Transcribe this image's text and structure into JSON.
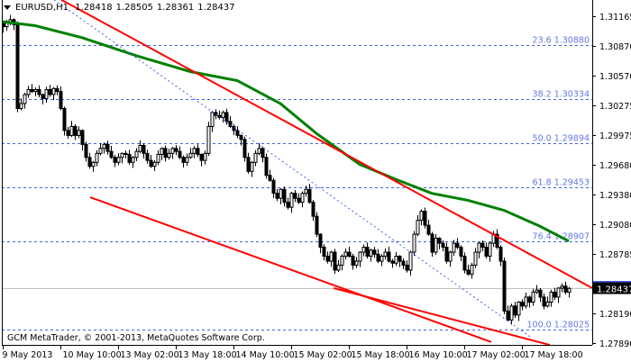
{
  "header": {
    "symbol": "EURUSD,H1",
    "open": "1.28418",
    "high": "1.28505",
    "low": "1.28361",
    "close": "1.28437"
  },
  "footer": {
    "copyright": "GCM MetaTrader, © 2001-2013, MetaQuotes Software Corp."
  },
  "colors": {
    "background": "#ffffff",
    "candle": "#000000",
    "ma": "#008000",
    "trendline": "#ff0000",
    "fibo": "#3c64e6",
    "fibo_text": "#6478e6",
    "bid_line": "#c0c0c0",
    "ask_line": "#3c64e6"
  },
  "chart_data": {
    "type": "candlestick",
    "symbol": "EURUSD",
    "timeframe": "H1",
    "ylim": [
      1.2776,
      1.3133
    ],
    "y_ticks": [
      "1.31165",
      "1.30870",
      "1.30570",
      "1.30275",
      "1.29975",
      "1.29680",
      "1.29380",
      "1.29080",
      "1.28785",
      "1.28190",
      "1.27890"
    ],
    "x_ticks": [
      {
        "bar": 0,
        "label": "9 May 2013"
      },
      {
        "bar": 16,
        "label": "10 May 10:00"
      },
      {
        "bar": 32,
        "label": "13 May 02:00"
      },
      {
        "bar": 48,
        "label": "13 May 18:00"
      },
      {
        "bar": 64,
        "label": "14 May 10:00"
      },
      {
        "bar": 80,
        "label": "15 May 02:00"
      },
      {
        "bar": 96,
        "label": "15 May 18:00"
      },
      {
        "bar": 112,
        "label": "16 May 10:00"
      },
      {
        "bar": 128,
        "label": "17 May 02:00"
      },
      {
        "bar": 144,
        "label": "17 May 18:00"
      }
    ],
    "closes": [
      1.3106,
      1.311,
      1.3113,
      1.3108,
      1.3024,
      1.3029,
      1.3038,
      1.3043,
      1.3041,
      1.3043,
      1.3038,
      1.3034,
      1.3043,
      1.3038,
      1.3044,
      1.3041,
      1.3024,
      1.3002,
      1.2997,
      1.3006,
      1.2997,
      1.3002,
      1.2988,
      1.2975,
      1.2966,
      1.297,
      1.2979,
      1.2984,
      1.2988,
      1.2981,
      1.2975,
      1.297,
      1.2975,
      1.2979,
      1.2978,
      1.297,
      1.2975,
      1.2981,
      1.2987,
      1.2979,
      1.2972,
      1.2966,
      1.297,
      1.2978,
      1.2984,
      1.2975,
      1.2979,
      1.2984,
      1.2981,
      1.2975,
      1.297,
      1.2975,
      1.2979,
      1.2984,
      1.2978,
      1.2972,
      1.2979,
      1.3006,
      1.302,
      1.3017,
      1.3015,
      1.302,
      1.3011,
      1.3006,
      1.3002,
      1.2997,
      1.2993,
      1.2975,
      1.2961,
      1.297,
      1.2979,
      1.2984,
      1.2975,
      1.2957,
      1.2952,
      1.2939,
      1.2934,
      1.2943,
      1.293,
      1.2925,
      1.2939,
      1.2934,
      1.293,
      1.2939,
      1.2943,
      1.293,
      1.2916,
      1.2898,
      1.2885,
      1.2876,
      1.2871,
      1.288,
      1.2862,
      1.2867,
      1.2876,
      1.288,
      1.2876,
      1.2867,
      1.2871,
      1.288,
      1.2885,
      1.2876,
      1.2882,
      1.2878,
      1.2871,
      1.2876,
      1.288,
      1.2871,
      1.2869,
      1.2876,
      1.2871,
      1.2867,
      1.2862,
      1.288,
      1.2898,
      1.2912,
      1.2921,
      1.2907,
      1.2898,
      1.288,
      1.2894,
      1.2889,
      1.2885,
      1.2871,
      1.288,
      1.2889,
      1.2885,
      1.2876,
      1.2862,
      1.2858,
      1.2867,
      1.288,
      1.2889,
      1.2885,
      1.2876,
      1.2889,
      1.2898,
      1.2885,
      1.2871,
      1.2821,
      1.2812,
      1.2826,
      1.2817,
      1.283,
      1.2826,
      1.2835,
      1.283,
      1.284,
      1.2842,
      1.2835,
      1.2826,
      1.283,
      1.284,
      1.2835,
      1.2844,
      1.2846,
      1.284,
      1.28437
    ],
    "moving_average": [
      [
        0,
        1.3111
      ],
      [
        9,
        1.3107
      ],
      [
        22,
        1.3095
      ],
      [
        37,
        1.3077
      ],
      [
        52,
        1.3061
      ],
      [
        65,
        1.3052
      ],
      [
        77,
        1.3029
      ],
      [
        87,
        1.2999
      ],
      [
        99,
        1.2968
      ],
      [
        109,
        1.2953
      ],
      [
        119,
        1.2939
      ],
      [
        129,
        1.2932
      ],
      [
        139,
        1.2922
      ],
      [
        149,
        1.2906
      ],
      [
        157,
        1.2891
      ]
    ],
    "trendlines": [
      {
        "from": [
          16.25,
          1.3133
        ],
        "to": [
          163.5,
          1.2844
        ]
      },
      {
        "from": [
          24.25,
          1.2935
        ],
        "to": [
          135.5,
          1.279
        ]
      },
      {
        "from": [
          91.75,
          1.2844
        ],
        "to": [
          151.75,
          1.2787
        ]
      }
    ],
    "dotted_line": {
      "from": [
        14.25,
        1.3133
      ],
      "to": [
        146.75,
        1.2794
      ]
    },
    "fibonacci": [
      {
        "level": "23.6",
        "price": "1.30880"
      },
      {
        "level": "38.2",
        "price": "1.30334"
      },
      {
        "level": "50.0",
        "price": "1.29894"
      },
      {
        "level": "61.8",
        "price": "1.29453"
      },
      {
        "level": "76.4",
        "price": "1.28907"
      },
      {
        "level": "100.0",
        "price": "1.28025"
      }
    ],
    "bid": "1.28437",
    "ask": "1.28495"
  }
}
